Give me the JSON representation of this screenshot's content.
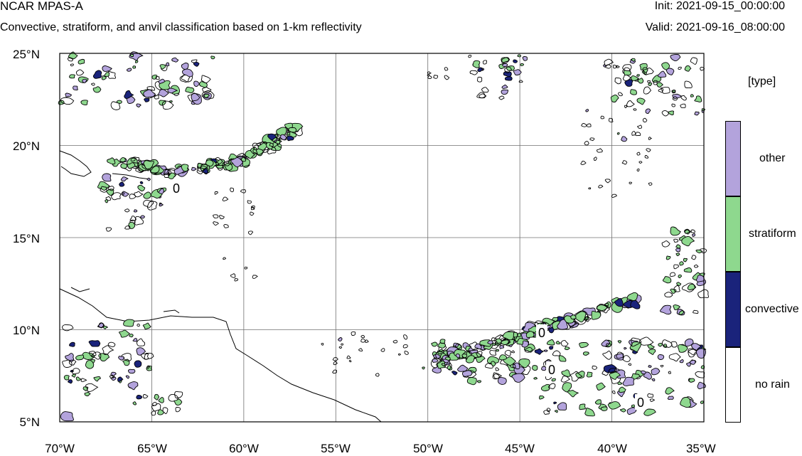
{
  "header": {
    "title": "NCAR MPAS-A",
    "subtitle": "Convective, stratiform, and anvil classification based on 1-km reflectivity",
    "init": "Init: 2021-09-15_00:00:00",
    "valid": "Valid: 2021-09-16_08:00:00"
  },
  "map": {
    "lon_range": [
      -70,
      -35
    ],
    "lat_range": [
      5,
      25
    ],
    "lat_labels": [
      "25°N",
      "20°N",
      "15°N",
      "10°N",
      "5°N"
    ],
    "lon_labels": [
      "70°W",
      "65°W",
      "60°W",
      "55°W",
      "50°W",
      "45°W",
      "40°W",
      "35°W"
    ],
    "contour_labels": [
      "0",
      "0",
      "0",
      "0"
    ],
    "grid": true
  },
  "legend": {
    "title": "[type]",
    "items": [
      {
        "label": "other",
        "color": "#b3a3dc"
      },
      {
        "label": "stratiform",
        "color": "#8ed88e"
      },
      {
        "label": "convective",
        "color": "#1a237b"
      },
      {
        "label": "no rain",
        "color": "#ffffff"
      }
    ]
  },
  "colors": {
    "other": "#b3a3dc",
    "stratiform": "#8ed88e",
    "convective": "#1a237b",
    "gridline": "#707070",
    "coast": "#000000"
  }
}
